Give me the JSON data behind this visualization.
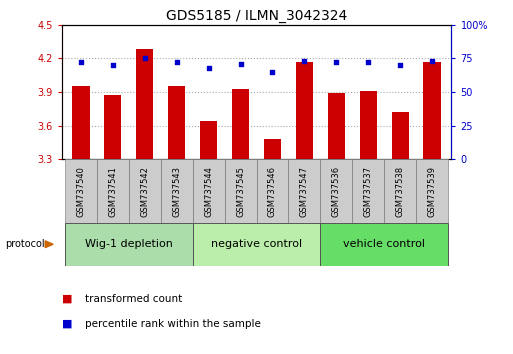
{
  "title": "GDS5185 / ILMN_3042324",
  "samples": [
    "GSM737540",
    "GSM737541",
    "GSM737542",
    "GSM737543",
    "GSM737544",
    "GSM737545",
    "GSM737546",
    "GSM737547",
    "GSM737536",
    "GSM737537",
    "GSM737538",
    "GSM737539"
  ],
  "bar_values": [
    3.95,
    3.875,
    4.28,
    3.95,
    3.64,
    3.93,
    3.48,
    4.17,
    3.895,
    3.91,
    3.72,
    4.17
  ],
  "dot_values": [
    72,
    70,
    75,
    72,
    68,
    71,
    65,
    73,
    72,
    72,
    70,
    73
  ],
  "groups": [
    {
      "label": "Wig-1 depletion",
      "start": 0,
      "end": 4
    },
    {
      "label": "negative control",
      "start": 4,
      "end": 8
    },
    {
      "label": "vehicle control",
      "start": 8,
      "end": 12
    }
  ],
  "ylim_left": [
    3.3,
    4.5
  ],
  "ylim_right": [
    0,
    100
  ],
  "yticks_left": [
    3.3,
    3.6,
    3.9,
    4.2,
    4.5
  ],
  "yticks_right": [
    0,
    25,
    50,
    75,
    100
  ],
  "bar_color": "#cc0000",
  "dot_color": "#0000cc",
  "sample_box_color": "#cccccc",
  "group_colors": [
    "#aaddaa",
    "#bbeeaa",
    "#66dd66"
  ],
  "protocol_arrow_color": "#cc6600",
  "grid_color": "#aaaaaa",
  "title_fontsize": 10,
  "tick_fontsize": 7,
  "sample_fontsize": 6,
  "group_fontsize": 8,
  "legend_fontsize": 7.5
}
